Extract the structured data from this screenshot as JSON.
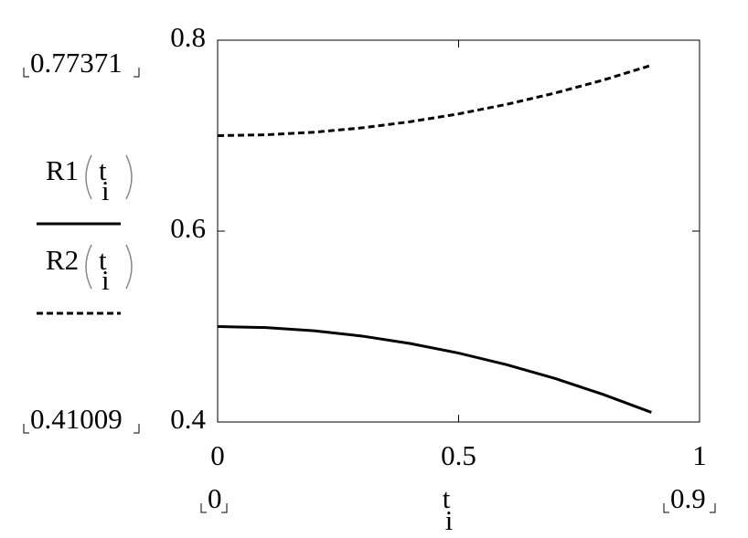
{
  "chart_data": {
    "type": "line",
    "x": [
      0,
      0.1,
      0.2,
      0.3,
      0.4,
      0.5,
      0.6,
      0.7,
      0.8,
      0.9
    ],
    "series": [
      {
        "name": "R1",
        "color": "#000000",
        "dash": false,
        "values": [
          0.5,
          0.4989,
          0.4956,
          0.49,
          0.4822,
          0.4722,
          0.46,
          0.4456,
          0.4289,
          0.41009
        ]
      },
      {
        "name": "R2",
        "color": "#000000",
        "dash": true,
        "values": [
          0.7,
          0.7009,
          0.7036,
          0.7082,
          0.7146,
          0.7228,
          0.7328,
          0.7446,
          0.7582,
          0.77371
        ]
      }
    ],
    "x_label": "t",
    "x_label_sub": "i",
    "xlim": [
      0,
      1
    ],
    "xticks": [
      0,
      0.5,
      1
    ],
    "ylim": [
      0.4,
      0.8
    ],
    "yticks": [
      0.4,
      0.6,
      0.8
    ],
    "ymax_marker": 0.77371,
    "ymin_marker": 0.41009,
    "xmin_marker": 0,
    "xmax_marker": 0.9
  }
}
